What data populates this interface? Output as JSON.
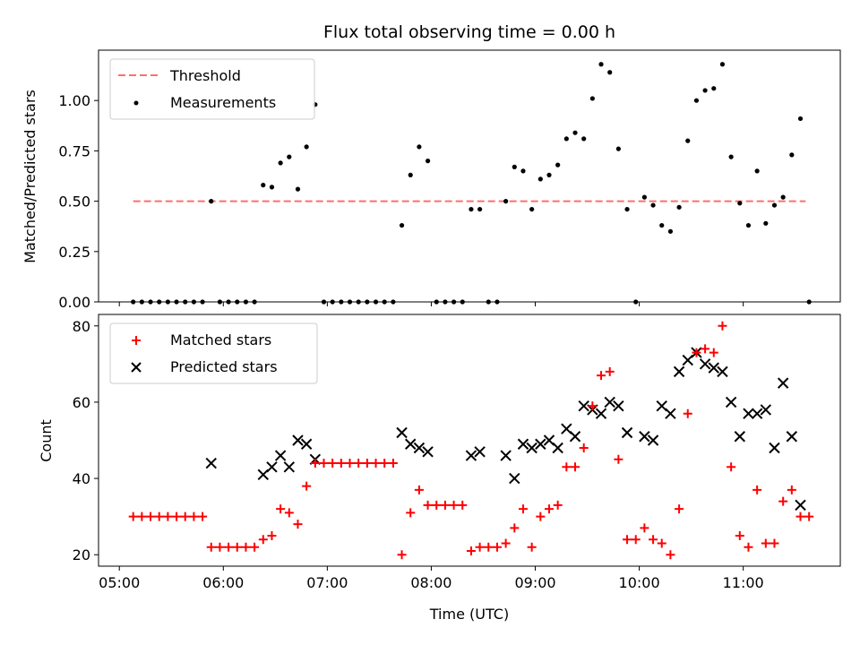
{
  "chart_data": [
    {
      "type": "scatter",
      "title": "Flux total observing time = 0.00 h",
      "ylabel": "Matched/Predicted stars",
      "xlabel": "",
      "xlim": [
        "04:48",
        "11:56"
      ],
      "ylim": [
        0,
        1.25
      ],
      "yticks": [
        "0.00",
        "0.25",
        "0.50",
        "0.75",
        "1.00"
      ],
      "legend": {
        "placement": "top-left",
        "entries": [
          "Threshold",
          "Measurements"
        ]
      },
      "colors": {
        "threshold": "#ff6e6e",
        "measurements": "#000000"
      },
      "threshold": {
        "name": "Threshold",
        "x": [
          "05:08",
          "11:36"
        ],
        "y": 0.5
      },
      "measurements": {
        "name": "Measurements",
        "points": [
          [
            "05:08",
            0
          ],
          [
            "05:13",
            0
          ],
          [
            "05:18",
            0
          ],
          [
            "05:23",
            0
          ],
          [
            "05:28",
            0
          ],
          [
            "05:33",
            0
          ],
          [
            "05:38",
            0
          ],
          [
            "05:43",
            0
          ],
          [
            "05:48",
            0
          ],
          [
            "05:53",
            0.5
          ],
          [
            "05:58",
            0
          ],
          [
            "06:03",
            0
          ],
          [
            "06:08",
            0
          ],
          [
            "06:13",
            0
          ],
          [
            "06:18",
            0
          ],
          [
            "06:23",
            0.58
          ],
          [
            "06:28",
            0.57
          ],
          [
            "06:33",
            0.69
          ],
          [
            "06:38",
            0.72
          ],
          [
            "06:43",
            0.56
          ],
          [
            "06:48",
            0.77
          ],
          [
            "06:53",
            0.98
          ],
          [
            "06:58",
            0
          ],
          [
            "07:03",
            0
          ],
          [
            "07:08",
            0
          ],
          [
            "07:13",
            0
          ],
          [
            "07:18",
            0
          ],
          [
            "07:23",
            0
          ],
          [
            "07:28",
            0
          ],
          [
            "07:33",
            0
          ],
          [
            "07:38",
            0
          ],
          [
            "07:43",
            0.38
          ],
          [
            "07:48",
            0.63
          ],
          [
            "07:53",
            0.77
          ],
          [
            "07:58",
            0.7
          ],
          [
            "08:03",
            0
          ],
          [
            "08:08",
            0
          ],
          [
            "08:13",
            0
          ],
          [
            "08:18",
            0
          ],
          [
            "08:23",
            0.46
          ],
          [
            "08:28",
            0.46
          ],
          [
            "08:33",
            0
          ],
          [
            "08:38",
            0
          ],
          [
            "08:43",
            0.5
          ],
          [
            "08:48",
            0.67
          ],
          [
            "08:53",
            0.65
          ],
          [
            "08:58",
            0.46
          ],
          [
            "09:03",
            0.61
          ],
          [
            "09:08",
            0.63
          ],
          [
            "09:13",
            0.68
          ],
          [
            "09:18",
            0.81
          ],
          [
            "09:23",
            0.84
          ],
          [
            "09:28",
            0.81
          ],
          [
            "09:33",
            1.01
          ],
          [
            "09:38",
            1.18
          ],
          [
            "09:43",
            1.14
          ],
          [
            "09:48",
            0.76
          ],
          [
            "09:53",
            0.46
          ],
          [
            "09:58",
            0
          ],
          [
            "10:03",
            0.52
          ],
          [
            "10:08",
            0.48
          ],
          [
            "10:13",
            0.38
          ],
          [
            "10:18",
            0.35
          ],
          [
            "10:23",
            0.47
          ],
          [
            "10:28",
            0.8
          ],
          [
            "10:33",
            1.0
          ],
          [
            "10:38",
            1.05
          ],
          [
            "10:43",
            1.06
          ],
          [
            "10:48",
            1.18
          ],
          [
            "10:53",
            0.72
          ],
          [
            "10:58",
            0.49
          ],
          [
            "11:03",
            0.38
          ],
          [
            "11:08",
            0.65
          ],
          [
            "11:13",
            0.39
          ],
          [
            "11:18",
            0.48
          ],
          [
            "11:23",
            0.52
          ],
          [
            "11:28",
            0.73
          ],
          [
            "11:33",
            0.91
          ],
          [
            "11:38",
            0
          ]
        ]
      }
    },
    {
      "type": "scatter",
      "title": "",
      "ylabel": "Count",
      "xlabel": "Time (UTC)",
      "xlim": [
        "04:48",
        "11:56"
      ],
      "ylim": [
        17,
        83
      ],
      "yticks": [
        "20",
        "40",
        "60",
        "80"
      ],
      "xticks": [
        "05:00",
        "06:00",
        "07:00",
        "08:00",
        "09:00",
        "10:00",
        "11:00"
      ],
      "legend": {
        "placement": "top-left",
        "entries": [
          "Matched stars",
          "Predicted stars"
        ]
      },
      "colors": {
        "matched": "#ff0000",
        "predicted": "#000000"
      },
      "series": [
        {
          "name": "Matched stars",
          "points": [
            [
              "05:08",
              30
            ],
            [
              "05:13",
              30
            ],
            [
              "05:18",
              30
            ],
            [
              "05:23",
              30
            ],
            [
              "05:28",
              30
            ],
            [
              "05:33",
              30
            ],
            [
              "05:38",
              30
            ],
            [
              "05:43",
              30
            ],
            [
              "05:48",
              30
            ],
            [
              "05:53",
              22
            ],
            [
              "05:58",
              22
            ],
            [
              "06:03",
              22
            ],
            [
              "06:08",
              22
            ],
            [
              "06:13",
              22
            ],
            [
              "06:18",
              22
            ],
            [
              "06:23",
              24
            ],
            [
              "06:28",
              25
            ],
            [
              "06:33",
              32
            ],
            [
              "06:38",
              31
            ],
            [
              "06:43",
              28
            ],
            [
              "06:48",
              38
            ],
            [
              "06:53",
              44
            ],
            [
              "06:58",
              44
            ],
            [
              "07:03",
              44
            ],
            [
              "07:08",
              44
            ],
            [
              "07:13",
              44
            ],
            [
              "07:18",
              44
            ],
            [
              "07:23",
              44
            ],
            [
              "07:28",
              44
            ],
            [
              "07:33",
              44
            ],
            [
              "07:38",
              44
            ],
            [
              "07:43",
              20
            ],
            [
              "07:48",
              31
            ],
            [
              "07:53",
              37
            ],
            [
              "07:58",
              33
            ],
            [
              "08:03",
              33
            ],
            [
              "08:08",
              33
            ],
            [
              "08:13",
              33
            ],
            [
              "08:18",
              33
            ],
            [
              "08:23",
              21
            ],
            [
              "08:28",
              22
            ],
            [
              "08:33",
              22
            ],
            [
              "08:38",
              22
            ],
            [
              "08:43",
              23
            ],
            [
              "08:48",
              27
            ],
            [
              "08:53",
              32
            ],
            [
              "08:58",
              22
            ],
            [
              "09:03",
              30
            ],
            [
              "09:08",
              32
            ],
            [
              "09:13",
              33
            ],
            [
              "09:18",
              43
            ],
            [
              "09:23",
              43
            ],
            [
              "09:28",
              48
            ],
            [
              "09:33",
              59
            ],
            [
              "09:38",
              67
            ],
            [
              "09:43",
              68
            ],
            [
              "09:48",
              45
            ],
            [
              "09:53",
              24
            ],
            [
              "09:58",
              24
            ],
            [
              "10:03",
              27
            ],
            [
              "10:08",
              24
            ],
            [
              "10:13",
              23
            ],
            [
              "10:18",
              20
            ],
            [
              "10:23",
              32
            ],
            [
              "10:28",
              57
            ],
            [
              "10:33",
              73
            ],
            [
              "10:38",
              74
            ],
            [
              "10:43",
              73
            ],
            [
              "10:48",
              80
            ],
            [
              "10:53",
              43
            ],
            [
              "10:58",
              25
            ],
            [
              "11:03",
              22
            ],
            [
              "11:08",
              37
            ],
            [
              "11:13",
              23
            ],
            [
              "11:18",
              23
            ],
            [
              "11:23",
              34
            ],
            [
              "11:28",
              37
            ],
            [
              "11:33",
              30
            ],
            [
              "11:38",
              30
            ]
          ]
        },
        {
          "name": "Predicted stars",
          "points": [
            [
              "05:53",
              44
            ],
            [
              "06:23",
              41
            ],
            [
              "06:28",
              43
            ],
            [
              "06:33",
              46
            ],
            [
              "06:38",
              43
            ],
            [
              "06:43",
              50
            ],
            [
              "06:48",
              49
            ],
            [
              "06:53",
              45
            ],
            [
              "07:43",
              52
            ],
            [
              "07:48",
              49
            ],
            [
              "07:53",
              48
            ],
            [
              "07:58",
              47
            ],
            [
              "08:23",
              46
            ],
            [
              "08:28",
              47
            ],
            [
              "08:43",
              46
            ],
            [
              "08:48",
              40
            ],
            [
              "08:53",
              49
            ],
            [
              "08:58",
              48
            ],
            [
              "09:03",
              49
            ],
            [
              "09:08",
              50
            ],
            [
              "09:13",
              48
            ],
            [
              "09:18",
              53
            ],
            [
              "09:23",
              51
            ],
            [
              "09:28",
              59
            ],
            [
              "09:33",
              58
            ],
            [
              "09:38",
              57
            ],
            [
              "09:43",
              60
            ],
            [
              "09:48",
              59
            ],
            [
              "09:53",
              52
            ],
            [
              "10:03",
              51
            ],
            [
              "10:08",
              50
            ],
            [
              "10:13",
              59
            ],
            [
              "10:18",
              57
            ],
            [
              "10:23",
              68
            ],
            [
              "10:28",
              71
            ],
            [
              "10:33",
              73
            ],
            [
              "10:38",
              70
            ],
            [
              "10:43",
              69
            ],
            [
              "10:48",
              68
            ],
            [
              "10:53",
              60
            ],
            [
              "10:58",
              51
            ],
            [
              "11:03",
              57
            ],
            [
              "11:08",
              57
            ],
            [
              "11:13",
              58
            ],
            [
              "11:18",
              48
            ],
            [
              "11:23",
              65
            ],
            [
              "11:28",
              51
            ],
            [
              "11:33",
              33
            ]
          ]
        }
      ]
    }
  ]
}
